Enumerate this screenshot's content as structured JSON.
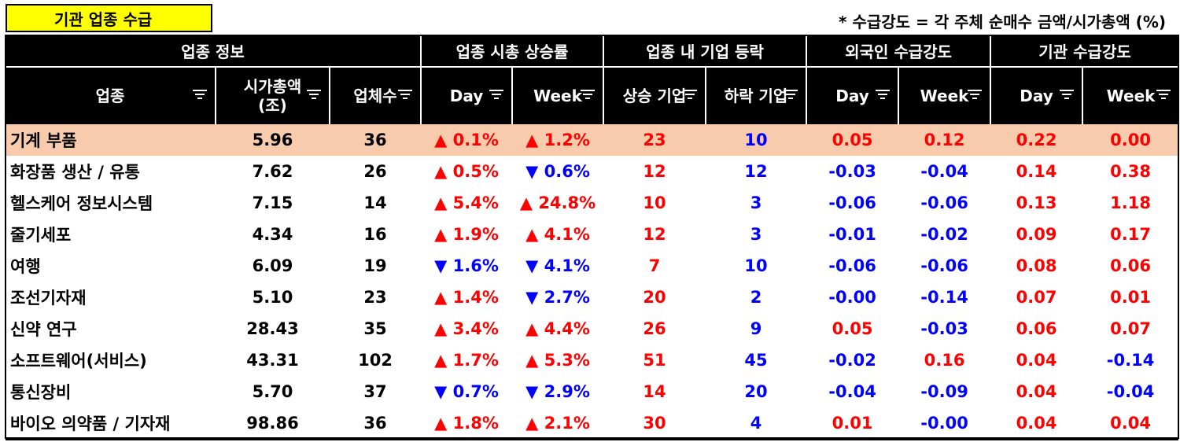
{
  "title": "기관 업종 수급",
  "note": "* 수급강도 = 각 주체 순매수 금액/시가총액 (%)",
  "groups": [
    "업종 정보",
    "업종 시총 상승률",
    "업종 내 기업 등락",
    "외국인 수급강도",
    "기관 수급강도"
  ],
  "columns": {
    "sector": "업종",
    "mcap_1": "시가총액",
    "mcap_2": "(조)",
    "count": "업체수",
    "mc_day": "Day",
    "mc_week": "Week",
    "up": "상승 기업",
    "down": "하락 기업",
    "f_day": "Day",
    "f_week": "Week",
    "i_day": "Day",
    "i_week": "Week"
  },
  "colors": {
    "up": "#ff0000",
    "down": "#0000ff",
    "highlight": "#f8cbad",
    "title_bg": "#ffff00",
    "header_bg": "#000000"
  },
  "rows": [
    {
      "sector": "기계 부품",
      "mcap": "5.96",
      "count": "36",
      "mc_day": "▲ 0.1%",
      "mc_week": "▲ 1.2%",
      "up": "23",
      "down": "10",
      "f_day": "0.05",
      "f_week": "0.12",
      "i_day": "0.22",
      "i_week": "0.00"
    },
    {
      "sector": "화장품 생산 / 유통",
      "mcap": "7.62",
      "count": "26",
      "mc_day": "▲ 0.5%",
      "mc_week": "▼ 0.6%",
      "up": "12",
      "down": "12",
      "f_day": "-0.03",
      "f_week": "-0.04",
      "i_day": "0.14",
      "i_week": "0.38"
    },
    {
      "sector": "헬스케어 정보시스템",
      "mcap": "7.15",
      "count": "14",
      "mc_day": "▲ 5.4%",
      "mc_week": "▲ 24.8%",
      "up": "10",
      "down": "3",
      "f_day": "-0.06",
      "f_week": "-0.06",
      "i_day": "0.13",
      "i_week": "1.18"
    },
    {
      "sector": "줄기세포",
      "mcap": "4.34",
      "count": "16",
      "mc_day": "▲ 1.9%",
      "mc_week": "▲ 4.1%",
      "up": "12",
      "down": "3",
      "f_day": "-0.01",
      "f_week": "-0.02",
      "i_day": "0.09",
      "i_week": "0.17"
    },
    {
      "sector": "여행",
      "mcap": "6.09",
      "count": "19",
      "mc_day": "▼ 1.6%",
      "mc_week": "▼ 4.1%",
      "up": "7",
      "down": "10",
      "f_day": "-0.06",
      "f_week": "-0.06",
      "i_day": "0.08",
      "i_week": "0.06"
    },
    {
      "sector": "조선기자재",
      "mcap": "5.10",
      "count": "23",
      "mc_day": "▲ 1.4%",
      "mc_week": "▼ 2.7%",
      "up": "20",
      "down": "2",
      "f_day": "-0.00",
      "f_week": "-0.14",
      "i_day": "0.07",
      "i_week": "0.01"
    },
    {
      "sector": "신약 연구",
      "mcap": "28.43",
      "count": "35",
      "mc_day": "▲ 3.4%",
      "mc_week": "▲ 4.4%",
      "up": "26",
      "down": "9",
      "f_day": "0.05",
      "f_week": "-0.03",
      "i_day": "0.06",
      "i_week": "0.07"
    },
    {
      "sector": "소프트웨어(서비스)",
      "mcap": "43.31",
      "count": "102",
      "mc_day": "▲ 1.7%",
      "mc_week": "▲ 5.3%",
      "up": "51",
      "down": "45",
      "f_day": "-0.02",
      "f_week": "0.16",
      "i_day": "0.04",
      "i_week": "-0.14"
    },
    {
      "sector": "통신장비",
      "mcap": "5.70",
      "count": "37",
      "mc_day": "▼ 0.7%",
      "mc_week": "▼ 2.9%",
      "up": "14",
      "down": "20",
      "f_day": "-0.04",
      "f_week": "-0.09",
      "i_day": "0.04",
      "i_week": "-0.04"
    },
    {
      "sector": "바이오 의약품 / 기자재",
      "mcap": "98.86",
      "count": "36",
      "mc_day": "▲ 1.8%",
      "mc_week": "▲ 2.1%",
      "up": "30",
      "down": "4",
      "f_day": "0.01",
      "f_week": "-0.00",
      "i_day": "0.04",
      "i_week": "0.04"
    }
  ]
}
